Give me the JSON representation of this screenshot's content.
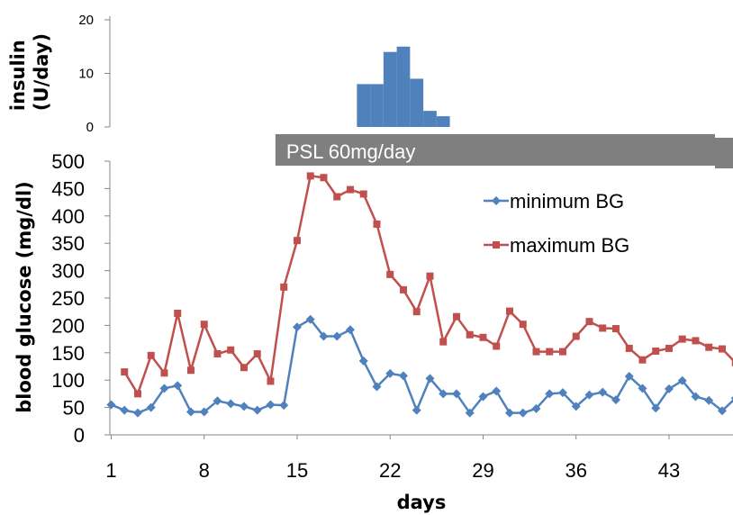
{
  "chart_data": [
    {
      "type": "bar",
      "ylabel": "insulin\n(U/day)",
      "ylim": [
        0,
        20
      ],
      "yticks": [
        0,
        10,
        20
      ],
      "color": "#4f81bd",
      "x": [
        20,
        21,
        22,
        23,
        24,
        25,
        26,
        27
      ],
      "values": [
        8,
        8,
        14,
        15,
        9,
        3,
        2,
        0
      ],
      "annotation": {
        "label": "PSL 60mg/day",
        "x_start": 13.5,
        "x_end": 48,
        "color": "#7f7f7f"
      }
    },
    {
      "type": "line",
      "xlabel": "days",
      "ylabel": "blood glucose (mg/dl)",
      "ylim": [
        0,
        500
      ],
      "yticks": [
        0,
        50,
        100,
        150,
        200,
        250,
        300,
        350,
        400,
        450,
        500
      ],
      "xlim": [
        1,
        48
      ],
      "xticks": [
        1,
        8,
        15,
        22,
        29,
        36,
        43
      ],
      "legend_position": "right",
      "series": [
        {
          "name": "minimum BG",
          "color": "#4f81bd",
          "marker": "diamond",
          "x": [
            1,
            2,
            3,
            4,
            5,
            6,
            7,
            8,
            9,
            10,
            11,
            12,
            13,
            14,
            15,
            16,
            17,
            18,
            19,
            20,
            21,
            22,
            23,
            24,
            25,
            26,
            27,
            28,
            29,
            30,
            31,
            32,
            33,
            34,
            35,
            36,
            37,
            38,
            39,
            40,
            41,
            42,
            43,
            44,
            45,
            46,
            47,
            48
          ],
          "values": [
            55,
            45,
            40,
            50,
            85,
            90,
            42,
            42,
            62,
            57,
            52,
            45,
            55,
            54,
            197,
            211,
            180,
            180,
            192,
            135,
            88,
            112,
            108,
            45,
            103,
            75,
            75,
            40,
            70,
            80,
            40,
            40,
            48,
            75,
            77,
            52,
            73,
            78,
            64,
            107,
            85,
            49,
            84,
            99,
            70,
            63,
            44,
            67
          ]
        },
        {
          "name": "maximum BG",
          "color": "#c0504d",
          "marker": "square",
          "x": [
            2,
            3,
            4,
            5,
            6,
            7,
            8,
            9,
            10,
            11,
            12,
            13,
            14,
            15,
            16,
            17,
            18,
            19,
            20,
            21,
            22,
            23,
            24,
            25,
            26,
            27,
            28,
            29,
            30,
            31,
            32,
            33,
            34,
            35,
            36,
            37,
            38,
            39,
            40,
            41,
            42,
            43,
            44,
            45,
            46,
            47,
            48
          ],
          "values": [
            115,
            75,
            145,
            113,
            222,
            118,
            202,
            148,
            155,
            123,
            148,
            98,
            270,
            355,
            473,
            470,
            435,
            448,
            440,
            385,
            293,
            265,
            225,
            290,
            170,
            216,
            183,
            178,
            162,
            226,
            202,
            152,
            152,
            152,
            180,
            207,
            195,
            194,
            158,
            137,
            153,
            158,
            175,
            172,
            160,
            157,
            132
          ]
        }
      ]
    }
  ]
}
